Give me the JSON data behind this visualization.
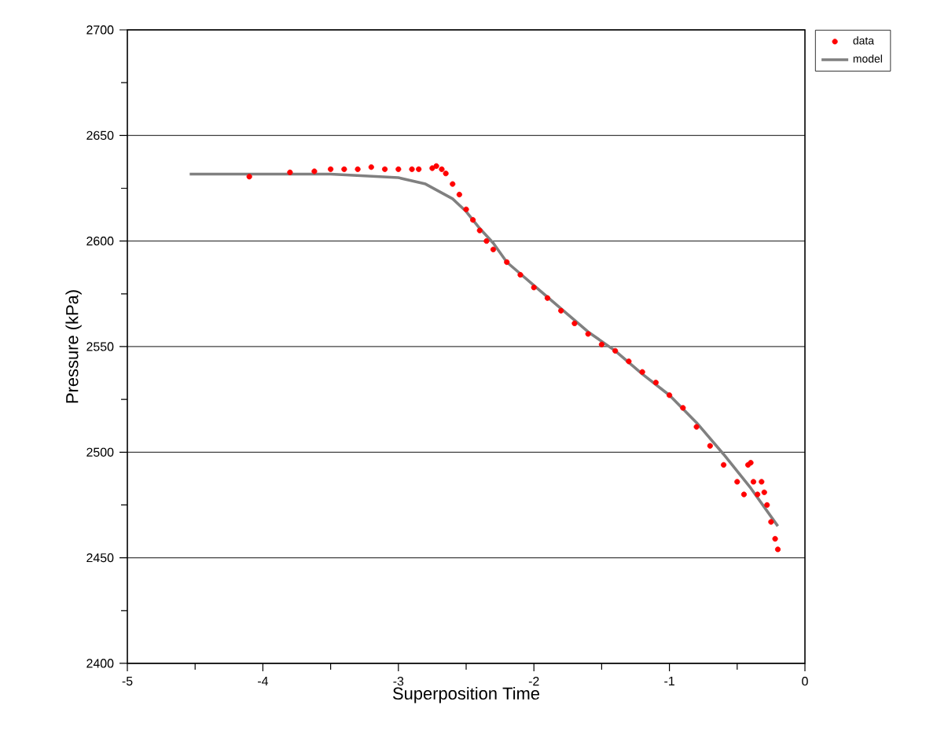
{
  "chart_data": {
    "type": "scatter",
    "xlabel": "Superposition Time",
    "ylabel": "Pressure (kPa)",
    "xlim": [
      -5,
      0
    ],
    "xticks": [
      -5,
      -4,
      -3,
      -2,
      -1,
      0
    ],
    "ylim": [
      2400,
      2700
    ],
    "yticks": [
      2400,
      2450,
      2500,
      2550,
      2600,
      2650,
      2700
    ],
    "grid": "y",
    "legend": "top right",
    "marker": "circle",
    "series": [
      {
        "name": "data",
        "color": "#ff0000",
        "x": [
          -4.1,
          -3.8,
          -3.62,
          -3.5,
          -3.4,
          -3.3,
          -3.2,
          -3.1,
          -3.0,
          -2.9,
          -2.85,
          -2.75,
          -2.72,
          -2.68,
          -2.65,
          -2.6,
          -2.55,
          -2.5,
          -2.45,
          -2.4,
          -2.35,
          -2.3,
          -2.2,
          -2.1,
          -2.0,
          -1.9,
          -1.8,
          -1.7,
          -1.6,
          -1.5,
          -1.4,
          -1.3,
          -1.2,
          -1.1,
          -1.0,
          -0.9,
          -0.8,
          -0.7,
          -0.6,
          -0.5,
          -0.45,
          -0.42,
          -0.4,
          -0.38,
          -0.35,
          -0.32,
          -0.3,
          -0.28,
          -0.25,
          -0.22,
          -0.2
        ],
        "values": [
          2630.5,
          2632.5,
          2633,
          2634,
          2634,
          2634,
          2635,
          2634,
          2634,
          2634,
          2634,
          2634.5,
          2635.5,
          2634,
          2632,
          2627,
          2622,
          2615,
          2610,
          2605,
          2600,
          2596,
          2590,
          2584,
          2578,
          2573,
          2567,
          2561,
          2556,
          2551,
          2548,
          2543,
          2538,
          2533,
          2527,
          2521,
          2512,
          2503,
          2494,
          2486,
          2480,
          2494,
          2495,
          2486,
          2480,
          2486,
          2481,
          2475,
          2467,
          2459,
          2454
        ]
      },
      {
        "name": "model",
        "type": "line",
        "color": "#808080",
        "marker": "none",
        "line_style": "solid",
        "x": [
          -4.54,
          -3.5,
          -3.0,
          -2.8,
          -2.6,
          -2.5,
          -2.4,
          -2.3,
          -2.2,
          -2.0,
          -1.8,
          -1.6,
          -1.4,
          -1.2,
          -1.0,
          -0.8,
          -0.6,
          -0.4,
          -0.2
        ],
        "values": [
          2631.7,
          2631.7,
          2630,
          2627,
          2620,
          2614,
          2606,
          2599,
          2590,
          2579,
          2568,
          2557,
          2548,
          2537,
          2527,
          2514,
          2499,
          2483,
          2465
        ]
      }
    ]
  }
}
